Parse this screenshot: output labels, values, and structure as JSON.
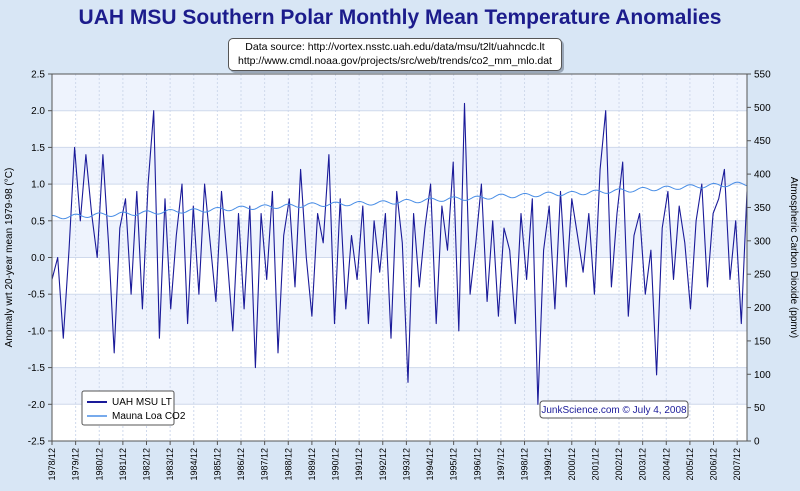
{
  "title": "UAH MSU Southern Polar Monthly Mean Temperature Anomalies",
  "source_line1": "Data source: http://vortex.nsstc.uah.edu/data/msu/t2lt/uahncdc.lt",
  "source_line2": "http://www.cmdl.noaa.gov/projects/src/web/trends/co2_mm_mlo.dat",
  "credit": "JunkScience.com © July 4, 2008",
  "colors": {
    "temp": "#1a1a99",
    "co2": "#4a8ee6",
    "title": "#1c1c8c"
  },
  "chart_data": {
    "type": "line",
    "title": "UAH MSU Southern Polar Monthly Mean Temperature Anomalies",
    "ylabel": "Anomaly wrt 20-year mean 1979-98 (°C)",
    "y2label": "Atmospheric Carbon Dioxide (ppmv)",
    "ylim": [
      -2.5,
      2.5
    ],
    "y2lim": [
      0,
      550
    ],
    "y_ticks": [
      -2.5,
      -2.0,
      -1.5,
      -1.0,
      -0.5,
      0.0,
      0.5,
      1.0,
      1.5,
      2.0,
      2.5
    ],
    "y_tick_labels": [
      "-2.5",
      "-2.0",
      "-1.5",
      "-1.0",
      "-0.5",
      "0.0",
      "0.5",
      "1.0",
      "1.5",
      "2.0",
      "2.5"
    ],
    "y2_ticks": [
      0,
      50,
      100,
      150,
      200,
      250,
      300,
      350,
      400,
      450,
      500,
      550
    ],
    "y2_tick_labels": [
      "0",
      "50",
      "100",
      "150",
      "200",
      "250",
      "300",
      "350",
      "400",
      "450",
      "500",
      "550"
    ],
    "x_tick_labels": [
      "1978/12",
      "1979/12",
      "1980/12",
      "1981/12",
      "1982/12",
      "1983/12",
      "1984/12",
      "1985/12",
      "1986/12",
      "1987/12",
      "1988/12",
      "1989/12",
      "1990/12",
      "1991/12",
      "1992/12",
      "1993/12",
      "1994/12",
      "1995/12",
      "1996/12",
      "1997/12",
      "1998/12",
      "1999/12",
      "2000/12",
      "2001/12",
      "2002/12",
      "2003/12",
      "2004/12",
      "2005/12",
      "2006/12",
      "2007/12"
    ],
    "x_range": [
      "1978/12",
      "2008/05"
    ],
    "grid": true,
    "legend_position": "bottom-left",
    "series": [
      {
        "name": "UAH MSU LT",
        "axis": "left",
        "start": "1978/12",
        "step": "quarterly",
        "values": [
          -0.3,
          0.0,
          -1.1,
          0.1,
          1.5,
          0.5,
          1.4,
          0.6,
          0.0,
          1.4,
          0.2,
          -1.3,
          0.4,
          0.8,
          -0.5,
          0.9,
          -0.7,
          1.0,
          2.0,
          -1.1,
          0.8,
          -0.7,
          0.3,
          1.0,
          -0.9,
          0.7,
          -0.5,
          1.0,
          0.2,
          -0.6,
          0.9,
          0.0,
          -1.0,
          0.6,
          -0.7,
          0.7,
          -1.5,
          0.6,
          -0.3,
          0.9,
          -1.3,
          0.3,
          0.8,
          -0.4,
          1.2,
          0.0,
          -0.8,
          0.6,
          0.2,
          1.4,
          -0.9,
          0.8,
          -0.7,
          0.3,
          -0.3,
          0.7,
          -0.9,
          0.5,
          -0.2,
          0.6,
          -1.1,
          0.9,
          0.2,
          -1.7,
          0.6,
          -0.4,
          0.4,
          1.0,
          -0.9,
          0.7,
          0.1,
          1.3,
          -1.0,
          2.1,
          -0.5,
          0.2,
          1.0,
          -0.6,
          0.5,
          -0.8,
          0.4,
          0.1,
          -0.9,
          0.6,
          -0.3,
          0.8,
          -2.0,
          0.1,
          0.7,
          -0.7,
          0.9,
          -0.4,
          0.8,
          0.3,
          -0.2,
          0.6,
          -0.5,
          1.2,
          2.0,
          -0.4,
          0.6,
          1.3,
          -0.8,
          0.3,
          0.6,
          -0.5,
          0.1,
          -1.6,
          0.4,
          0.9,
          -0.3,
          0.7,
          0.2,
          -0.7,
          0.5,
          1.0,
          -0.4,
          0.6,
          0.8,
          1.2,
          -0.3,
          0.5,
          -0.9,
          0.9
        ]
      },
      {
        "name": "Mauna Loa CO2",
        "axis": "right",
        "start": "1978/12",
        "step": "monthly-annual-cycle",
        "annual_values": [
          335,
          337,
          339,
          340,
          342,
          344,
          345,
          347,
          349,
          351,
          352,
          354,
          355,
          356,
          357,
          359,
          361,
          363,
          364,
          367,
          368,
          370,
          371,
          373,
          375,
          377,
          379,
          381,
          383,
          385
        ],
        "seasonal_amplitude_ppmv": 3
      }
    ]
  }
}
